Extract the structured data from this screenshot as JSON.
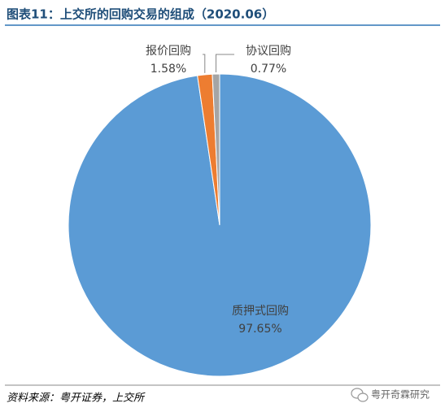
{
  "chart_data": {
    "type": "pie",
    "title": "图表11：上交所的回购交易的组成（2020.06）",
    "categories": [
      "质押式回购",
      "报价回购",
      "协议回购"
    ],
    "values": [
      97.65,
      1.58,
      0.77
    ],
    "value_labels": [
      "97.65%",
      "1.58%",
      "0.77%"
    ],
    "colors": [
      "#5b9bd5",
      "#ed7d31",
      "#a5a5a5"
    ],
    "source": "资料来源：粤开证券，上交所",
    "watermark": "粤开奇霖研究"
  }
}
